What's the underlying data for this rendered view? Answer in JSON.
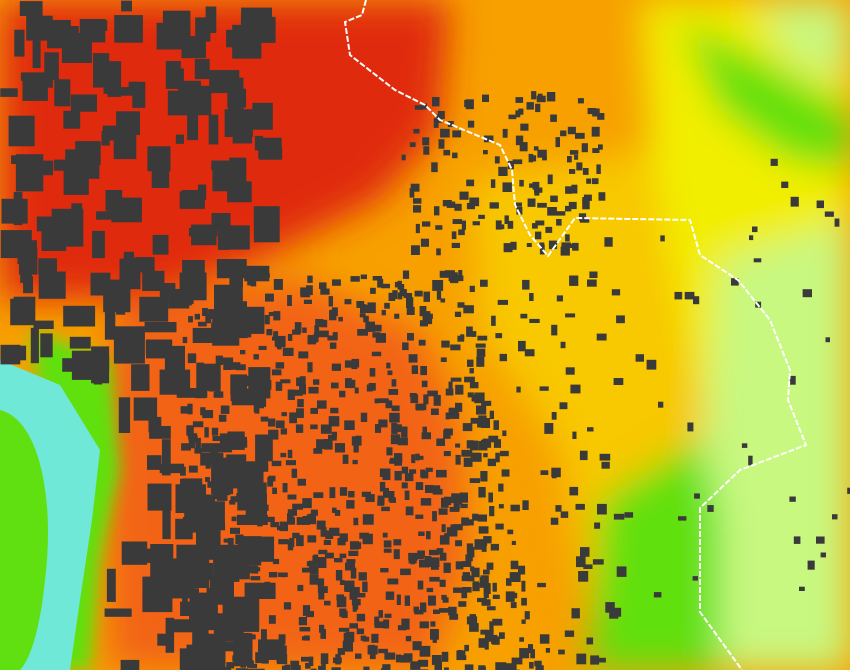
{
  "map": {
    "type": "noise-level heat map",
    "colors": {
      "base_orange": "#f7a000",
      "red_core": "#e02a10",
      "orange_red": "#f26414",
      "yellow": "#f2ee00",
      "yellow_orange": "#f8c800",
      "light_green": "#c8f880",
      "green": "#60e010",
      "water_cyan": "#70e8d8",
      "buildings": "#3a3a3a",
      "boundary": "#ffffff"
    },
    "boundary_line": "dashed-white"
  }
}
